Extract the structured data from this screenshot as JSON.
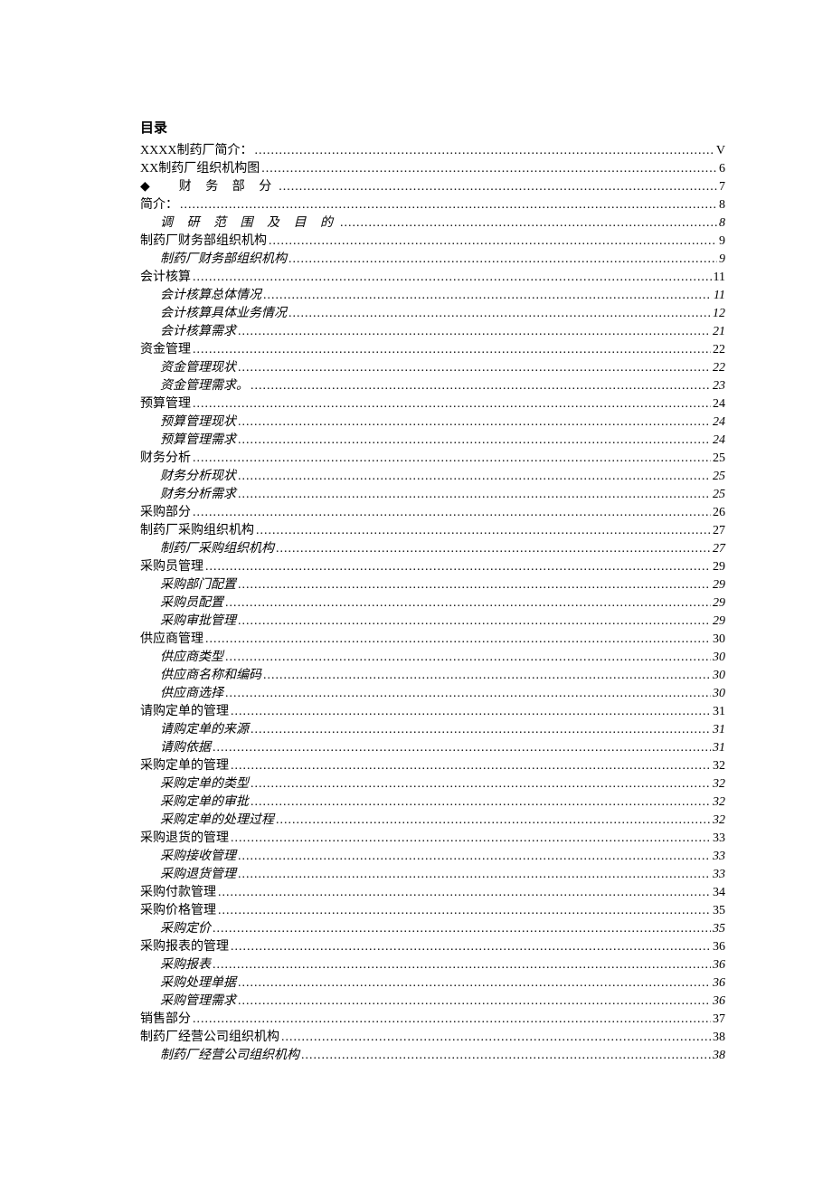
{
  "heading": "目录",
  "entries": [
    {
      "label": "XXXX制药厂简介：",
      "page": "V",
      "level": 0,
      "spaced": false,
      "diamond": false
    },
    {
      "label": "XX制药厂组织机构图",
      "page": "6",
      "level": 0,
      "spaced": false,
      "diamond": false
    },
    {
      "label": "财 务 部 分",
      "page": "7",
      "level": 0,
      "spaced": true,
      "diamond": true
    },
    {
      "label": "简介：",
      "page": "8",
      "level": 0,
      "spaced": false,
      "diamond": false
    },
    {
      "label": "调 研 范 围 及 目 的",
      "page": "8",
      "level": 1,
      "spaced": true,
      "diamond": false
    },
    {
      "label": "制药厂财务部组织机构",
      "page": "9",
      "level": 0,
      "spaced": false,
      "diamond": false
    },
    {
      "label": "制药厂财务部组织机构",
      "page": "9",
      "level": 1,
      "spaced": false,
      "diamond": false
    },
    {
      "label": "会计核算",
      "page": "11",
      "level": 0,
      "spaced": false,
      "diamond": false
    },
    {
      "label": "会计核算总体情况",
      "page": "11",
      "level": 1,
      "spaced": false,
      "diamond": false
    },
    {
      "label": "会计核算具体业务情况",
      "page": "12",
      "level": 1,
      "spaced": false,
      "diamond": false
    },
    {
      "label": "会计核算需求",
      "page": "21",
      "level": 1,
      "spaced": false,
      "diamond": false
    },
    {
      "label": "资金管理",
      "page": "22",
      "level": 0,
      "spaced": false,
      "diamond": false
    },
    {
      "label": "资金管理现状",
      "page": "22",
      "level": 1,
      "spaced": false,
      "diamond": false
    },
    {
      "label": "资金管理需求。",
      "page": "23",
      "level": 1,
      "spaced": false,
      "diamond": false
    },
    {
      "label": "预算管理",
      "page": "24",
      "level": 0,
      "spaced": false,
      "diamond": false
    },
    {
      "label": "预算管理现状",
      "page": "24",
      "level": 1,
      "spaced": false,
      "diamond": false
    },
    {
      "label": "预算管理需求",
      "page": "24",
      "level": 1,
      "spaced": false,
      "diamond": false
    },
    {
      "label": "财务分析",
      "page": "25",
      "level": 0,
      "spaced": false,
      "diamond": false
    },
    {
      "label": "财务分析现状",
      "page": "25",
      "level": 1,
      "spaced": false,
      "diamond": false
    },
    {
      "label": "财务分析需求",
      "page": "25",
      "level": 1,
      "spaced": false,
      "diamond": false
    },
    {
      "label": "采购部分",
      "page": "26",
      "level": 0,
      "spaced": false,
      "diamond": false
    },
    {
      "label": "制药厂采购组织机构",
      "page": "27",
      "level": 0,
      "spaced": false,
      "diamond": false
    },
    {
      "label": "制药厂采购组织机构",
      "page": "27",
      "level": 1,
      "spaced": false,
      "diamond": false
    },
    {
      "label": "采购员管理",
      "page": "29",
      "level": 0,
      "spaced": false,
      "diamond": false
    },
    {
      "label": "采购部门配置",
      "page": "29",
      "level": 1,
      "spaced": false,
      "diamond": false
    },
    {
      "label": "采购员配置",
      "page": "29",
      "level": 1,
      "spaced": false,
      "diamond": false
    },
    {
      "label": "采购审批管理",
      "page": "29",
      "level": 1,
      "spaced": false,
      "diamond": false
    },
    {
      "label": "供应商管理",
      "page": "30",
      "level": 0,
      "spaced": false,
      "diamond": false
    },
    {
      "label": "供应商类型",
      "page": "30",
      "level": 1,
      "spaced": false,
      "diamond": false
    },
    {
      "label": "供应商名称和编码",
      "page": "30",
      "level": 1,
      "spaced": false,
      "diamond": false
    },
    {
      "label": "供应商选择",
      "page": "30",
      "level": 1,
      "spaced": false,
      "diamond": false
    },
    {
      "label": "请购定单的管理",
      "page": "31",
      "level": 0,
      "spaced": false,
      "diamond": false
    },
    {
      "label": "请购定单的来源",
      "page": "31",
      "level": 1,
      "spaced": false,
      "diamond": false
    },
    {
      "label": "请购依据",
      "page": "31",
      "level": 1,
      "spaced": false,
      "diamond": false
    },
    {
      "label": "采购定单的管理",
      "page": "32",
      "level": 0,
      "spaced": false,
      "diamond": false
    },
    {
      "label": "采购定单的类型",
      "page": "32",
      "level": 1,
      "spaced": false,
      "diamond": false
    },
    {
      "label": "采购定单的审批",
      "page": "32",
      "level": 1,
      "spaced": false,
      "diamond": false
    },
    {
      "label": "采购定单的处理过程",
      "page": "32",
      "level": 1,
      "spaced": false,
      "diamond": false
    },
    {
      "label": "采购退货的管理",
      "page": "33",
      "level": 0,
      "spaced": false,
      "diamond": false
    },
    {
      "label": "采购接收管理",
      "page": "33",
      "level": 1,
      "spaced": false,
      "diamond": false
    },
    {
      "label": "采购退货管理",
      "page": "33",
      "level": 1,
      "spaced": false,
      "diamond": false
    },
    {
      "label": "采购付款管理",
      "page": "34",
      "level": 0,
      "spaced": false,
      "diamond": false
    },
    {
      "label": "采购价格管理",
      "page": "35",
      "level": 0,
      "spaced": false,
      "diamond": false
    },
    {
      "label": "采购定价",
      "page": "35",
      "level": 1,
      "spaced": false,
      "diamond": false
    },
    {
      "label": "采购报表的管理",
      "page": "36",
      "level": 0,
      "spaced": false,
      "diamond": false
    },
    {
      "label": "采购报表",
      "page": "36",
      "level": 1,
      "spaced": false,
      "diamond": false
    },
    {
      "label": "采购处理单据",
      "page": "36",
      "level": 1,
      "spaced": false,
      "diamond": false
    },
    {
      "label": "采购管理需求",
      "page": "36",
      "level": 1,
      "spaced": false,
      "diamond": false
    },
    {
      "label": "销售部分",
      "page": "37",
      "level": 0,
      "spaced": false,
      "diamond": false
    },
    {
      "label": "制药厂经营公司组织机构",
      "page": "38",
      "level": 0,
      "spaced": false,
      "diamond": false
    },
    {
      "label": "制药厂经营公司组织机构",
      "page": "38",
      "level": 1,
      "spaced": false,
      "diamond": false
    }
  ]
}
